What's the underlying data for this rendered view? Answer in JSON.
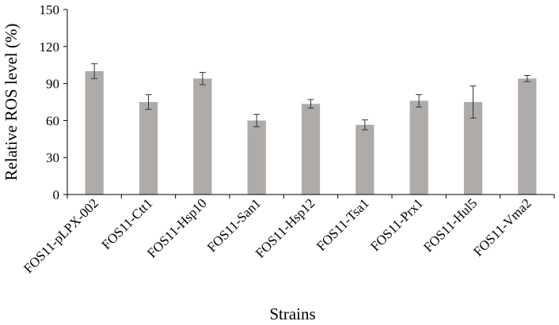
{
  "chart_data": {
    "type": "bar",
    "title": "",
    "xlabel": "Strains",
    "ylabel": "Relative ROS level (%)",
    "ylim": [
      0,
      150
    ],
    "yticks": [
      0,
      30,
      60,
      90,
      120,
      150
    ],
    "grid": false,
    "legend": "none",
    "bar_color": "#aeaba9",
    "categories": [
      "FOS11-pLPX-002",
      "FOS11-Ctt1",
      "FOS11-Hsp10",
      "FOS11-San1",
      "FOS11-Hsp12",
      "FOS11-Tsa1",
      "FOS11-Prx1",
      "FOS11-Hul5",
      "FOS11-Vma2"
    ],
    "values": [
      100,
      75,
      94,
      60,
      73.5,
      56.5,
      76,
      75,
      94
    ],
    "errors": [
      6,
      6,
      5,
      5,
      3.5,
      4,
      5,
      13,
      2.5
    ]
  }
}
